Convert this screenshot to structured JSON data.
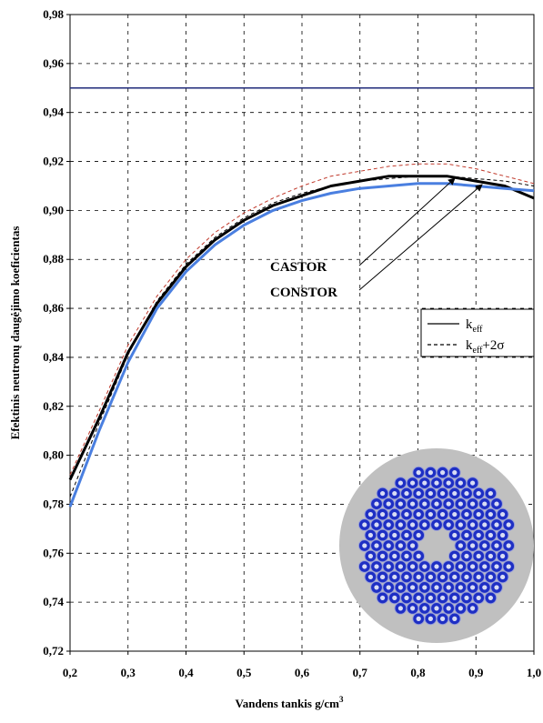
{
  "chart_data": {
    "type": "line",
    "y_label": "Efektinis neutronų daugėjimo koeficientas",
    "x_label": [
      "Vandens tankis  g/cm",
      "3"
    ],
    "x": [
      0.2,
      0.25,
      0.3,
      0.35,
      0.4,
      0.45,
      0.5,
      0.55,
      0.6,
      0.65,
      0.7,
      0.75,
      0.8,
      0.85,
      0.9,
      0.95,
      1.0
    ],
    "series": [
      {
        "color": "#000000",
        "style": "solid",
        "width": 3,
        "values": [
          0.79,
          0.815,
          0.842,
          0.862,
          0.877,
          0.888,
          0.896,
          0.902,
          0.906,
          0.91,
          0.912,
          0.914,
          0.914,
          0.914,
          0.912,
          0.91,
          0.905
        ]
      },
      {
        "color": "#4a7fe0",
        "style": "solid",
        "width": 3,
        "values": [
          0.779,
          0.81,
          0.838,
          0.86,
          0.875,
          0.886,
          0.894,
          0.9,
          0.904,
          0.907,
          0.909,
          0.91,
          0.911,
          0.911,
          0.91,
          0.909,
          0.908
        ]
      },
      {
        "color": "#c0392b",
        "style": "dashed",
        "width": 1,
        "values": [
          0.792,
          0.818,
          0.845,
          0.865,
          0.88,
          0.891,
          0.899,
          0.905,
          0.91,
          0.914,
          0.916,
          0.918,
          0.919,
          0.919,
          0.917,
          0.914,
          0.911
        ]
      },
      {
        "color": "#000000",
        "style": "dashed",
        "width": 1,
        "values": [
          0.783,
          0.813,
          0.841,
          0.863,
          0.878,
          0.889,
          0.897,
          0.903,
          0.907,
          0.91,
          0.912,
          0.913,
          0.914,
          0.914,
          0.913,
          0.912,
          0.91
        ]
      }
    ],
    "hline": {
      "value": 0.95,
      "color": "#1f2a7a"
    },
    "annotations": [
      "CASTOR",
      "CONSTOR"
    ],
    "legend": [
      {
        "parts": [
          "k",
          "eff"
        ],
        "style": "solid"
      },
      {
        "parts": [
          "k",
          "eff",
          "+2σ"
        ],
        "style": "dashed"
      }
    ],
    "xlim": [
      0.2,
      1.0
    ],
    "ylim": [
      0.72,
      0.98
    ],
    "xticks": [
      {
        "value": 0.2,
        "label": "0,2"
      },
      {
        "value": 0.3,
        "label": "0,3"
      },
      {
        "value": 0.4,
        "label": "0,4"
      },
      {
        "value": 0.5,
        "label": "0,5"
      },
      {
        "value": 0.6,
        "label": "0,6"
      },
      {
        "value": 0.7,
        "label": "0,7"
      },
      {
        "value": 0.8,
        "label": "0,8"
      },
      {
        "value": 0.9,
        "label": "0,9"
      },
      {
        "value": 1.0,
        "label": "1,0"
      }
    ],
    "yticks": [
      {
        "value": 0.72,
        "label": "0,72"
      },
      {
        "value": 0.74,
        "label": "0,74"
      },
      {
        "value": 0.76,
        "label": "0,76"
      },
      {
        "value": 0.78,
        "label": "0,78"
      },
      {
        "value": 0.8,
        "label": "0,80"
      },
      {
        "value": 0.82,
        "label": "0,82"
      },
      {
        "value": 0.84,
        "label": "0,84"
      },
      {
        "value": 0.86,
        "label": "0,86"
      },
      {
        "value": 0.88,
        "label": "0,88"
      },
      {
        "value": 0.9,
        "label": "0,90"
      },
      {
        "value": 0.92,
        "label": "0,92"
      },
      {
        "value": 0.94,
        "label": "0,94"
      },
      {
        "value": 0.96,
        "label": "0,96"
      },
      {
        "value": 0.98,
        "label": "0,98"
      }
    ],
    "grid": true
  }
}
